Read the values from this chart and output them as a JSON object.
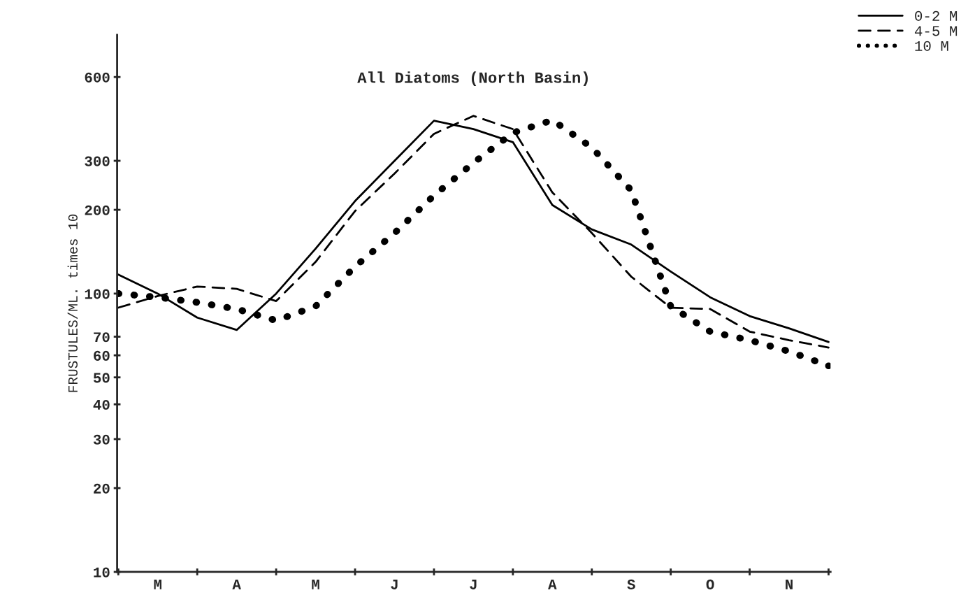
{
  "chart_data": {
    "type": "line",
    "title": "All Diatoms (North Basin)",
    "ylabel": "FRUSTULES/ML. times 10",
    "log": "y",
    "grid": false,
    "legend": "top right",
    "categories": [
      null,
      "M",
      null,
      "A",
      null,
      "M",
      null,
      "J",
      null,
      "J",
      null,
      "A",
      null,
      "S",
      null,
      "O",
      null,
      "N",
      null
    ],
    "ylim": [
      10,
      850
    ],
    "yticks": [
      10,
      20,
      30,
      40,
      50,
      60,
      70,
      100,
      200,
      300,
      600
    ],
    "series": [
      {
        "name": "0-2 M",
        "color": "#000000",
        "line_style": "solid",
        "values": [
          117,
          100,
          82,
          74,
          100,
          145,
          215,
          300,
          418,
          390,
          350,
          208,
          170,
          150,
          120,
          97,
          83,
          75,
          67
        ]
      },
      {
        "name": "4-5 M",
        "color": "#000000",
        "line_style": "dashed",
        "values": [
          89,
          98,
          106,
          104,
          94,
          130,
          198,
          270,
          375,
          435,
          390,
          231,
          165,
          115,
          89,
          88,
          73,
          68,
          64
        ]
      },
      {
        "name": "10 M",
        "color": "#000000",
        "line_style": "dotted",
        "values": [
          100,
          97,
          93,
          88,
          80,
          90,
          125,
          165,
          225,
          295,
          378,
          420,
          335,
          235,
          90,
          73,
          68,
          62,
          55
        ]
      }
    ]
  }
}
